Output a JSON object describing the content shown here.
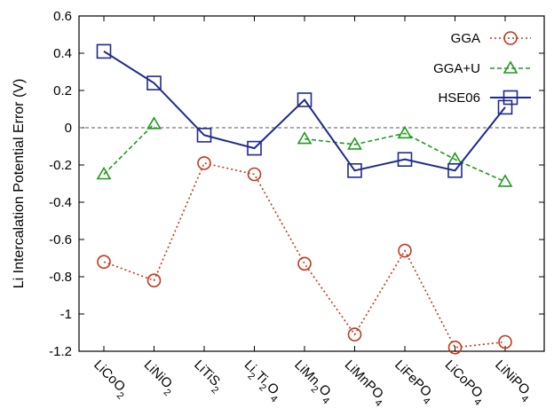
{
  "chart_data": {
    "type": "line",
    "title": "",
    "xlabel": "",
    "ylabel": "Li Intercalation Potential Error (V)",
    "ylim": [
      -1.2,
      0.6
    ],
    "yticks": [
      0.6,
      0.4,
      0.2,
      0,
      -0.2,
      -0.4,
      -0.6,
      -0.8,
      -1,
      -1.2
    ],
    "ytick_labels": [
      "0.6",
      "0.4",
      "0.2",
      "0",
      "-0.2",
      "-0.4",
      "-0.6",
      "-0.8",
      "-1",
      "-1.2"
    ],
    "categories": [
      "LiCoO2",
      "LiNiO2",
      "LiTiS2",
      "Li2Ti2O4",
      "LiMn2O4",
      "LiMnPO4",
      "LiFePO4",
      "LiCoPO4",
      "LiNiPO4"
    ],
    "category_labels": [
      [
        {
          "t": "LiCoO"
        },
        {
          "t": "2",
          "sub": true
        }
      ],
      [
        {
          "t": "LiNiO"
        },
        {
          "t": "2",
          "sub": true
        }
      ],
      [
        {
          "t": "LiTiS"
        },
        {
          "t": "2",
          "sub": true
        }
      ],
      [
        {
          "t": "Li"
        },
        {
          "t": "2",
          "sub": true
        },
        {
          "t": "Ti"
        },
        {
          "t": "2",
          "sub": true
        },
        {
          "t": "O"
        },
        {
          "t": "4",
          "sub": true
        }
      ],
      [
        {
          "t": "LiMn"
        },
        {
          "t": "2",
          "sub": true
        },
        {
          "t": "O"
        },
        {
          "t": "4",
          "sub": true
        }
      ],
      [
        {
          "t": "LiMnPO"
        },
        {
          "t": "4",
          "sub": true
        }
      ],
      [
        {
          "t": "LiFePO"
        },
        {
          "t": "4",
          "sub": true
        }
      ],
      [
        {
          "t": "LiCoPO"
        },
        {
          "t": "4",
          "sub": true
        }
      ],
      [
        {
          "t": "LiNiPO"
        },
        {
          "t": "4",
          "sub": true
        }
      ]
    ],
    "reference_line": {
      "y": 0,
      "style": "dashed",
      "color": "#555555"
    },
    "legend_position": "top-right",
    "grid": false,
    "series": [
      {
        "name": "GGA",
        "color": "#c0391b",
        "marker": "circle",
        "line_style": "dotted",
        "values": [
          -0.72,
          -0.82,
          -0.19,
          -0.25,
          -0.73,
          -1.11,
          -0.66,
          -1.18,
          -1.15
        ]
      },
      {
        "name": "GGA+U",
        "color": "#1f9a1f",
        "marker": "triangle",
        "line_style": "dashed",
        "values": [
          -0.25,
          0.02,
          null,
          null,
          -0.06,
          -0.09,
          -0.03,
          -0.17,
          -0.29
        ]
      },
      {
        "name": "HSE06",
        "color": "#1f2a8c",
        "marker": "square",
        "line_style": "solid",
        "values": [
          0.41,
          0.24,
          -0.04,
          -0.11,
          0.15,
          -0.23,
          -0.17,
          -0.23,
          0.11
        ]
      }
    ]
  }
}
